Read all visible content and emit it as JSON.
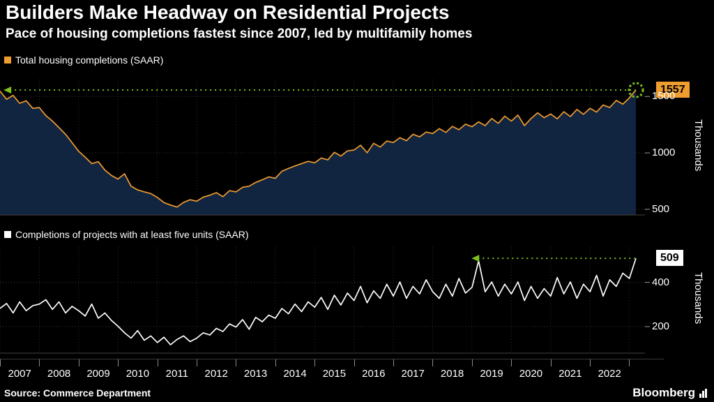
{
  "header": {
    "title": "Builders Make Headway on Residential Projects",
    "subtitle": "Pace of housing completions fastest since 2007, led by multifamily homes"
  },
  "source": {
    "label": "Source:  Commerce Department"
  },
  "branding": {
    "logo": "Bloomberg"
  },
  "colors": {
    "orange": "#f09d30",
    "navy_fill": "#112440",
    "white": "#ffffff",
    "green": "#7dc11e",
    "grid": "#3d3d3d",
    "vgrid": "#2c2c2c"
  },
  "x_axis": {
    "years": [
      "2007",
      "2008",
      "2009",
      "2010",
      "2011",
      "2012",
      "2013",
      "2014",
      "2015",
      "2016",
      "2017",
      "2018",
      "2019",
      "2020",
      "2021",
      "2022"
    ],
    "x_start": 2007,
    "x_axis_end": 2023.4
  },
  "chart_data": [
    {
      "type": "area",
      "legend": "Total housing completions (SAAR)",
      "title": "Total housing completions (SAAR)",
      "ylabel": "Thousands",
      "color": "#f09d30",
      "fill": "#112440",
      "yticks": [
        500,
        1000,
        1500
      ],
      "ylim": [
        450,
        1650
      ],
      "x_start": 2007,
      "x_end": 2023.17,
      "last_value": 1557,
      "last_label": "1557",
      "reference": {
        "value": 1557,
        "from": 2007.25,
        "end_marker": "circle"
      },
      "values": [
        1548,
        1475,
        1510,
        1440,
        1462,
        1395,
        1402,
        1330,
        1282,
        1224,
        1165,
        1090,
        1015,
        962,
        905,
        922,
        848,
        800,
        768,
        815,
        705,
        672,
        655,
        640,
        605,
        560,
        538,
        520,
        562,
        585,
        572,
        608,
        625,
        648,
        612,
        665,
        655,
        695,
        705,
        738,
        762,
        788,
        775,
        838,
        862,
        885,
        905,
        925,
        912,
        955,
        938,
        1005,
        972,
        1018,
        1025,
        1068,
        1002,
        1085,
        1052,
        1105,
        1092,
        1135,
        1108,
        1165,
        1142,
        1185,
        1172,
        1215,
        1182,
        1235,
        1205,
        1255,
        1232,
        1275,
        1242,
        1305,
        1262,
        1325,
        1282,
        1335,
        1242,
        1305,
        1355,
        1312,
        1345,
        1302,
        1365,
        1322,
        1385,
        1342,
        1395,
        1362,
        1425,
        1402,
        1465,
        1432,
        1488,
        1557
      ]
    },
    {
      "type": "line",
      "legend": "Completions of projects with at least five units (SAAR)",
      "title": "Completions of projects with at least five units (SAAR)",
      "ylabel": "Thousands",
      "color": "#ffffff",
      "fill": null,
      "yticks": [
        200,
        400
      ],
      "ylim": [
        80,
        560
      ],
      "x_start": 2007,
      "x_end": 2023.17,
      "last_value": 509,
      "last_label": "509",
      "reference": {
        "value": 509,
        "from": 2019.15,
        "end_marker": null
      },
      "values": [
        282,
        305,
        262,
        312,
        272,
        295,
        302,
        322,
        278,
        312,
        262,
        292,
        272,
        248,
        302,
        238,
        262,
        228,
        202,
        172,
        148,
        182,
        138,
        158,
        128,
        152,
        118,
        142,
        158,
        132,
        148,
        172,
        162,
        192,
        178,
        212,
        198,
        232,
        188,
        242,
        222,
        252,
        238,
        282,
        258,
        302,
        268,
        312,
        288,
        332,
        278,
        342,
        298,
        352,
        318,
        382,
        308,
        362,
        328,
        392,
        338,
        402,
        328,
        382,
        348,
        412,
        358,
        328,
        392,
        338,
        418,
        352,
        378,
        498,
        358,
        402,
        338,
        392,
        348,
        402,
        318,
        382,
        328,
        372,
        338,
        422,
        348,
        402,
        328,
        392,
        358,
        432,
        338,
        412,
        382,
        442,
        418,
        509
      ]
    }
  ]
}
